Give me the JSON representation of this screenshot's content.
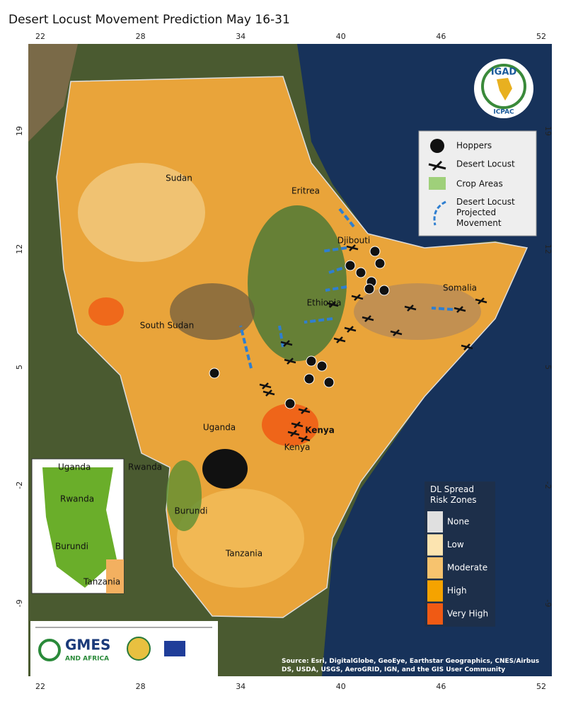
{
  "header": {
    "title": "Desert Locust Movement Prediction May 16-31"
  },
  "axes": {
    "longitude": [
      "22",
      "28",
      "34",
      "40",
      "46",
      "52"
    ],
    "latitude": [
      "19",
      "12",
      "5",
      "-2",
      "-9"
    ]
  },
  "places": [
    "Sudan",
    "Eritrea",
    "Djibouti",
    "Ethiopia",
    "Somalia",
    "South Sudan",
    "Uganda",
    "Kenya",
    "Kenya",
    "Rwanda",
    "Burundi",
    "Tanzania"
  ],
  "inset": [
    "Uganda",
    "Rwanda",
    "Burundi",
    "Tanzania"
  ],
  "legend": {
    "items": [
      "Hoppers",
      "Desert Locust",
      "Crop Areas",
      "Desert Locust Projected Movement"
    ]
  },
  "risk": {
    "title": "DL Spread Risk Zones",
    "levels": [
      "None",
      "Low",
      "Moderate",
      "High",
      "Very High"
    ]
  },
  "logos": {
    "igad": "IGAD",
    "icpac": "ICPAC",
    "gmes": "GMES",
    "gmes_sub": "AND AFRICA"
  },
  "source": "Source: Esri, DigitalGlobe, GeoEye, Earthstar Geographics, CNES/Airbus DS, USDA, USGS, AeroGRID, IGN, and the GIS User Community"
}
